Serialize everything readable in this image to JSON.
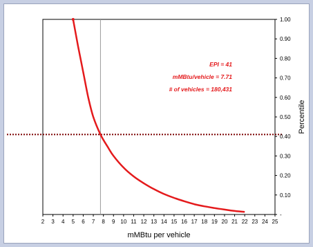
{
  "chart_data": {
    "type": "line",
    "title": "",
    "xlabel": "mMBtu per vehicle",
    "ylabel": "Percentile",
    "xlim": [
      2,
      25
    ],
    "ylim": [
      0,
      1
    ],
    "x_ticks": [
      "2",
      "3",
      "4",
      "5",
      "6",
      "7",
      "8",
      "9",
      "10",
      "11",
      "12",
      "13",
      "14",
      "15",
      "16",
      "17",
      "18",
      "19",
      "20",
      "21",
      "22",
      "23",
      "24",
      "25"
    ],
    "y_ticks": [
      "1.00",
      "0.90",
      "0.80",
      "0.70",
      "0.60",
      "0.50",
      "0.40",
      "0.30",
      "0.20",
      "0.10",
      "-"
    ],
    "y_tick_values": [
      1.0,
      0.9,
      0.8,
      0.7,
      0.6,
      0.5,
      0.4,
      0.3,
      0.2,
      0.1,
      0.0
    ],
    "y_axis_side": "right",
    "grid": false,
    "series": [
      {
        "color": "#e41a1c",
        "x": [
          5.0,
          5.5,
          6.0,
          6.5,
          7.0,
          7.71,
          8.5,
          9.0,
          10.0,
          11.0,
          12.0,
          13.0,
          14.0,
          15.0,
          16.0,
          17.0,
          18.0,
          19.0,
          20.0,
          21.0,
          22.0
        ],
        "y": [
          1.0,
          0.86,
          0.73,
          0.6,
          0.5,
          0.41,
          0.34,
          0.3,
          0.24,
          0.195,
          0.16,
          0.13,
          0.105,
          0.085,
          0.068,
          0.053,
          0.042,
          0.033,
          0.025,
          0.018,
          0.013
        ]
      }
    ],
    "reference_lines": {
      "vertical_x": 7.71,
      "horizontal_y": 0.41,
      "vertical_color": "#999999",
      "horizontal_color": "#7b0000"
    },
    "annotations": [
      "EPI = 41",
      "mMBtu/vehicle = 7.71",
      "# of vehicles = 180,431"
    ]
  }
}
